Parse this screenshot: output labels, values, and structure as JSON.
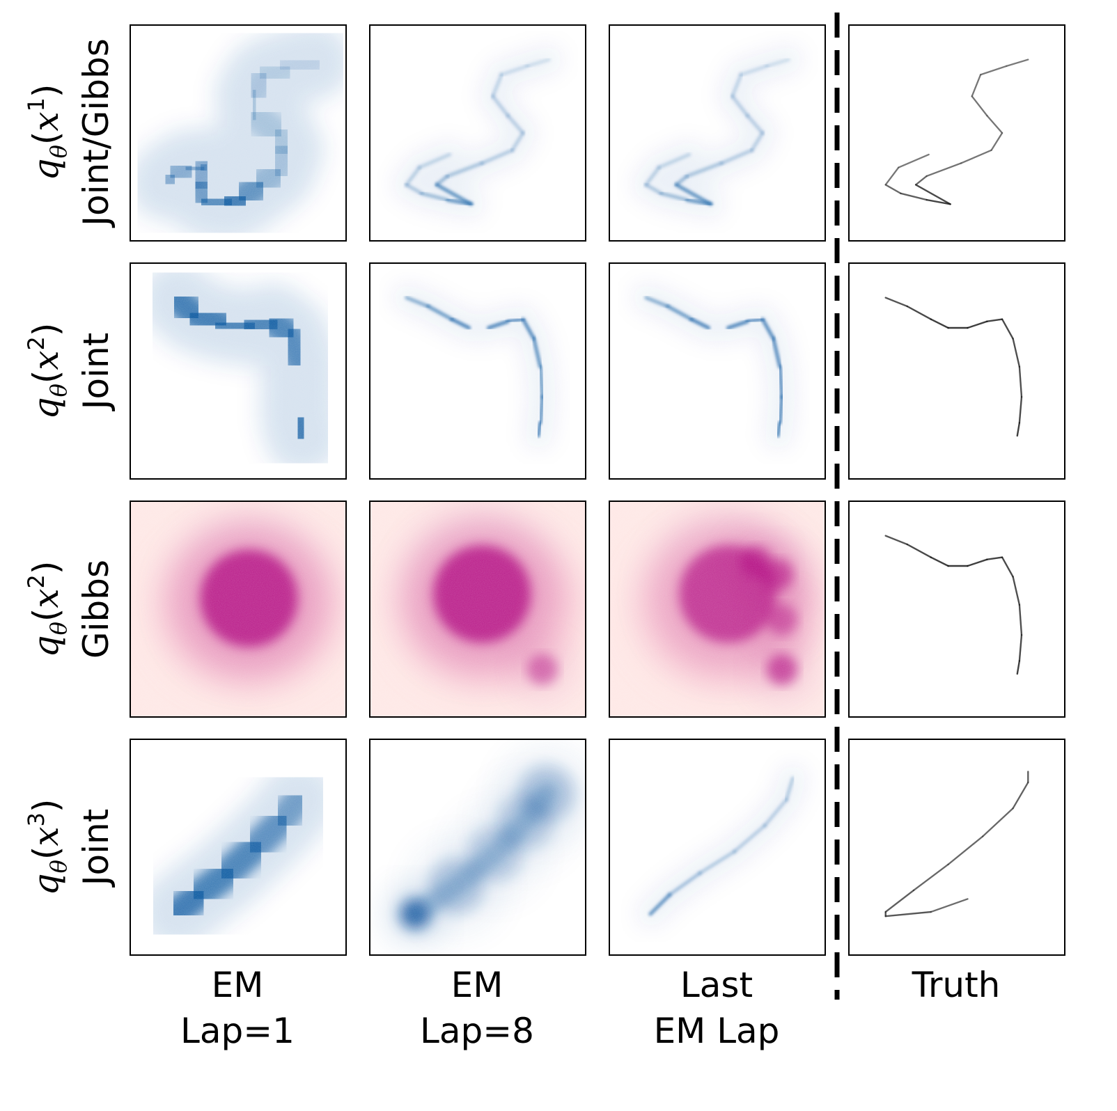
{
  "chart_data": {
    "type": "heatmap",
    "title": "",
    "grid": false,
    "rows": [
      {
        "label_line1": "q_θ(x^1)",
        "label_line2": "Joint/Gibbs",
        "symbol": "q",
        "subscript": "θ",
        "variable": "x",
        "superscript": "1"
      },
      {
        "label_line1": "q_θ(x^2)",
        "label_line2": "Joint",
        "symbol": "q",
        "subscript": "θ",
        "variable": "x",
        "superscript": "2"
      },
      {
        "label_line1": "q_θ(x^2)",
        "label_line2": "Gibbs",
        "symbol": "q",
        "subscript": "θ",
        "variable": "x",
        "superscript": "2"
      },
      {
        "label_line1": "q_θ(x^3)",
        "label_line2": "Joint",
        "symbol": "q",
        "subscript": "θ",
        "variable": "x",
        "superscript": "3"
      }
    ],
    "columns": [
      {
        "line1": "EM",
        "line2": "Lap=1"
      },
      {
        "line1": "EM",
        "line2": "Lap=8"
      },
      {
        "line1": "Last",
        "line2": "EM Lap"
      },
      {
        "line1": "Truth",
        "line2": ""
      }
    ],
    "colormaps": {
      "joint": "#08519c",
      "gibbs": "#ae017e",
      "gibbs_background": "#fde0dd",
      "truth": "#000000"
    },
    "separator": {
      "style": "dashed",
      "color": "#000000",
      "between_columns": [
        3,
        4
      ]
    },
    "panels": [
      {
        "row": 1,
        "col": 1,
        "cmap": "joint",
        "spread": "wide",
        "curve": [
          [
            0.17,
            0.73
          ],
          [
            0.2,
            0.7
          ],
          [
            0.27,
            0.66
          ],
          [
            0.33,
            0.67
          ],
          [
            0.35,
            0.65
          ],
          [
            0.31,
            0.74
          ],
          [
            0.35,
            0.81
          ],
          [
            0.45,
            0.83
          ],
          [
            0.52,
            0.8
          ],
          [
            0.6,
            0.74
          ],
          [
            0.68,
            0.68
          ],
          [
            0.72,
            0.58
          ],
          [
            0.68,
            0.5
          ],
          [
            0.58,
            0.42
          ],
          [
            0.57,
            0.32
          ],
          [
            0.62,
            0.24
          ],
          [
            0.72,
            0.2
          ],
          [
            0.85,
            0.17
          ]
        ],
        "weights": [
          0.5,
          0.55,
          0.5,
          0.5,
          0.5,
          0.6,
          0.7,
          0.9,
          1.0,
          0.5,
          0.35,
          0.3,
          0.3,
          0.3,
          0.3,
          0.25,
          0.2,
          0.15
        ]
      },
      {
        "row": 1,
        "col": 2,
        "cmap": "joint",
        "spread": "thin",
        "curve": [
          [
            0.37,
            0.6
          ],
          [
            0.23,
            0.66
          ],
          [
            0.17,
            0.74
          ],
          [
            0.24,
            0.78
          ],
          [
            0.36,
            0.81
          ],
          [
            0.47,
            0.83
          ],
          [
            0.31,
            0.74
          ],
          [
            0.36,
            0.7
          ],
          [
            0.52,
            0.64
          ],
          [
            0.66,
            0.58
          ],
          [
            0.71,
            0.5
          ],
          [
            0.64,
            0.42
          ],
          [
            0.57,
            0.33
          ],
          [
            0.61,
            0.23
          ],
          [
            0.73,
            0.19
          ],
          [
            0.83,
            0.16
          ]
        ],
        "weights": [
          0.25,
          0.3,
          0.3,
          0.4,
          0.5,
          1.0,
          0.5,
          0.4,
          0.35,
          0.3,
          0.3,
          0.3,
          0.3,
          0.25,
          0.2,
          0.2
        ]
      },
      {
        "row": 1,
        "col": 3,
        "cmap": "joint",
        "spread": "thin",
        "curve": [
          [
            0.37,
            0.6
          ],
          [
            0.23,
            0.66
          ],
          [
            0.17,
            0.74
          ],
          [
            0.24,
            0.78
          ],
          [
            0.36,
            0.81
          ],
          [
            0.47,
            0.83
          ],
          [
            0.31,
            0.74
          ],
          [
            0.36,
            0.7
          ],
          [
            0.52,
            0.64
          ],
          [
            0.66,
            0.58
          ],
          [
            0.71,
            0.5
          ],
          [
            0.64,
            0.42
          ],
          [
            0.57,
            0.33
          ],
          [
            0.61,
            0.23
          ],
          [
            0.73,
            0.19
          ],
          [
            0.83,
            0.16
          ]
        ],
        "weights": [
          0.25,
          0.3,
          0.3,
          0.4,
          0.5,
          1.0,
          0.5,
          0.4,
          0.35,
          0.3,
          0.3,
          0.3,
          0.3,
          0.25,
          0.2,
          0.2
        ]
      },
      {
        "row": 1,
        "col": 4,
        "cmap": "truth",
        "spread": "line",
        "curve": [
          [
            0.37,
            0.6
          ],
          [
            0.23,
            0.66
          ],
          [
            0.17,
            0.74
          ],
          [
            0.24,
            0.78
          ],
          [
            0.36,
            0.81
          ],
          [
            0.47,
            0.83
          ],
          [
            0.31,
            0.74
          ],
          [
            0.36,
            0.7
          ],
          [
            0.52,
            0.64
          ],
          [
            0.66,
            0.58
          ],
          [
            0.71,
            0.5
          ],
          [
            0.64,
            0.42
          ],
          [
            0.57,
            0.33
          ],
          [
            0.61,
            0.23
          ],
          [
            0.73,
            0.19
          ],
          [
            0.83,
            0.16
          ]
        ],
        "weights": [
          0.3,
          0.3,
          0.4,
          0.5,
          0.6,
          1.0,
          0.5,
          0.4,
          0.35,
          0.35,
          0.35,
          0.35,
          0.35,
          0.3,
          0.3,
          0.3
        ]
      },
      {
        "row": 2,
        "col": 1,
        "cmap": "joint",
        "spread": "wide",
        "curve": [
          [
            0.22,
            0.17
          ],
          [
            0.3,
            0.24
          ],
          [
            0.42,
            0.28
          ],
          [
            0.55,
            0.3
          ],
          [
            0.66,
            0.27
          ],
          [
            0.74,
            0.33
          ],
          [
            0.78,
            0.45
          ],
          [
            0.78,
            0.6
          ],
          [
            0.78,
            0.73
          ],
          [
            0.8,
            0.8
          ]
        ],
        "weights": [
          0.9,
          1.0,
          0.9,
          0.85,
          0.9,
          0.85,
          0.8,
          0.85,
          0.9,
          1.0
        ]
      },
      {
        "row": 2,
        "col": 2,
        "cmap": "joint",
        "spread": "thin",
        "curve": [
          [
            0.17,
            0.16
          ],
          [
            0.27,
            0.2
          ],
          [
            0.38,
            0.26
          ],
          [
            0.46,
            0.3
          ],
          [
            0.55,
            0.3
          ],
          [
            0.64,
            0.27
          ],
          [
            0.71,
            0.26
          ],
          [
            0.76,
            0.35
          ],
          [
            0.79,
            0.48
          ],
          [
            0.8,
            0.62
          ],
          [
            0.79,
            0.74
          ],
          [
            0.78,
            0.8
          ]
        ],
        "weights": [
          0.5,
          0.6,
          0.8,
          0.9,
          0.9,
          0.8,
          0.8,
          0.8,
          0.7,
          0.7,
          0.8,
          0.9
        ]
      },
      {
        "row": 2,
        "col": 3,
        "cmap": "joint",
        "spread": "thin",
        "curve": [
          [
            0.17,
            0.16
          ],
          [
            0.27,
            0.2
          ],
          [
            0.38,
            0.26
          ],
          [
            0.46,
            0.3
          ],
          [
            0.55,
            0.3
          ],
          [
            0.64,
            0.27
          ],
          [
            0.71,
            0.26
          ],
          [
            0.76,
            0.35
          ],
          [
            0.79,
            0.48
          ],
          [
            0.8,
            0.62
          ],
          [
            0.79,
            0.74
          ],
          [
            0.78,
            0.8
          ]
        ],
        "weights": [
          0.5,
          0.6,
          0.8,
          0.9,
          0.9,
          0.8,
          0.8,
          0.8,
          0.8,
          0.8,
          0.85,
          0.9
        ]
      },
      {
        "row": 2,
        "col": 4,
        "cmap": "truth",
        "spread": "line",
        "curve": [
          [
            0.17,
            0.16
          ],
          [
            0.27,
            0.2
          ],
          [
            0.38,
            0.26
          ],
          [
            0.46,
            0.3
          ],
          [
            0.55,
            0.3
          ],
          [
            0.64,
            0.27
          ],
          [
            0.71,
            0.26
          ],
          [
            0.76,
            0.35
          ],
          [
            0.79,
            0.48
          ],
          [
            0.8,
            0.62
          ],
          [
            0.79,
            0.74
          ],
          [
            0.78,
            0.8
          ]
        ],
        "weights": [
          0.6,
          0.7,
          0.8,
          0.9,
          0.9,
          0.8,
          0.8,
          0.7,
          0.7,
          0.7,
          0.8,
          0.9
        ]
      },
      {
        "row": 3,
        "col": 1,
        "cmap": "gibbs",
        "spread": "blob",
        "curve": [
          [
            0.55,
            0.45
          ]
        ],
        "weights": [
          1.0
        ]
      },
      {
        "row": 3,
        "col": 2,
        "cmap": "gibbs",
        "spread": "blob",
        "curve": [
          [
            0.52,
            0.43
          ],
          [
            0.8,
            0.78
          ]
        ],
        "weights": [
          1.0,
          0.6
        ]
      },
      {
        "row": 3,
        "col": 3,
        "cmap": "gibbs",
        "spread": "blob",
        "curve": [
          [
            0.55,
            0.43
          ],
          [
            0.68,
            0.28
          ],
          [
            0.78,
            0.34
          ],
          [
            0.8,
            0.55
          ],
          [
            0.8,
            0.78
          ]
        ],
        "weights": [
          0.85,
          0.7,
          0.75,
          0.6,
          0.8
        ]
      },
      {
        "row": 3,
        "col": 4,
        "cmap": "truth",
        "spread": "line",
        "curve": [
          [
            0.17,
            0.16
          ],
          [
            0.27,
            0.2
          ],
          [
            0.38,
            0.26
          ],
          [
            0.46,
            0.3
          ],
          [
            0.55,
            0.3
          ],
          [
            0.64,
            0.27
          ],
          [
            0.71,
            0.26
          ],
          [
            0.76,
            0.35
          ],
          [
            0.79,
            0.48
          ],
          [
            0.8,
            0.62
          ],
          [
            0.79,
            0.74
          ],
          [
            0.78,
            0.8
          ]
        ],
        "weights": [
          0.6,
          0.7,
          0.8,
          0.9,
          0.9,
          0.8,
          0.8,
          0.7,
          0.7,
          0.7,
          0.8,
          0.9
        ]
      },
      {
        "row": 4,
        "col": 1,
        "cmap": "joint",
        "spread": "wide",
        "curve": [
          [
            0.22,
            0.8
          ],
          [
            0.32,
            0.72
          ],
          [
            0.45,
            0.62
          ],
          [
            0.58,
            0.5
          ],
          [
            0.7,
            0.38
          ],
          [
            0.78,
            0.28
          ]
        ],
        "weights": [
          1.0,
          0.95,
          0.9,
          0.85,
          0.7,
          0.6
        ]
      },
      {
        "row": 4,
        "col": 2,
        "cmap": "joint",
        "spread": "blob-small",
        "curve": [
          [
            0.21,
            0.81
          ],
          [
            0.4,
            0.68
          ],
          [
            0.58,
            0.53
          ],
          [
            0.72,
            0.38
          ],
          [
            0.82,
            0.25
          ]
        ],
        "weights": [
          1.0,
          0.35,
          0.3,
          0.3,
          0.35
        ]
      },
      {
        "row": 4,
        "col": 3,
        "cmap": "joint",
        "spread": "thin",
        "curve": [
          [
            0.19,
            0.81
          ],
          [
            0.28,
            0.72
          ],
          [
            0.42,
            0.62
          ],
          [
            0.58,
            0.52
          ],
          [
            0.72,
            0.4
          ],
          [
            0.82,
            0.28
          ],
          [
            0.85,
            0.18
          ]
        ],
        "weights": [
          1.0,
          0.45,
          0.35,
          0.3,
          0.3,
          0.3,
          0.35
        ]
      },
      {
        "row": 4,
        "col": 4,
        "cmap": "truth",
        "spread": "line",
        "curve": [
          [
            0.55,
            0.74
          ],
          [
            0.38,
            0.8
          ],
          [
            0.17,
            0.82
          ],
          [
            0.17,
            0.8
          ],
          [
            0.3,
            0.7
          ],
          [
            0.46,
            0.58
          ],
          [
            0.62,
            0.45
          ],
          [
            0.76,
            0.32
          ],
          [
            0.83,
            0.2
          ],
          [
            0.83,
            0.15
          ]
        ],
        "weights": [
          0.4,
          0.45,
          0.8,
          0.6,
          0.5,
          0.45,
          0.45,
          0.5,
          0.55,
          0.6
        ]
      }
    ]
  }
}
